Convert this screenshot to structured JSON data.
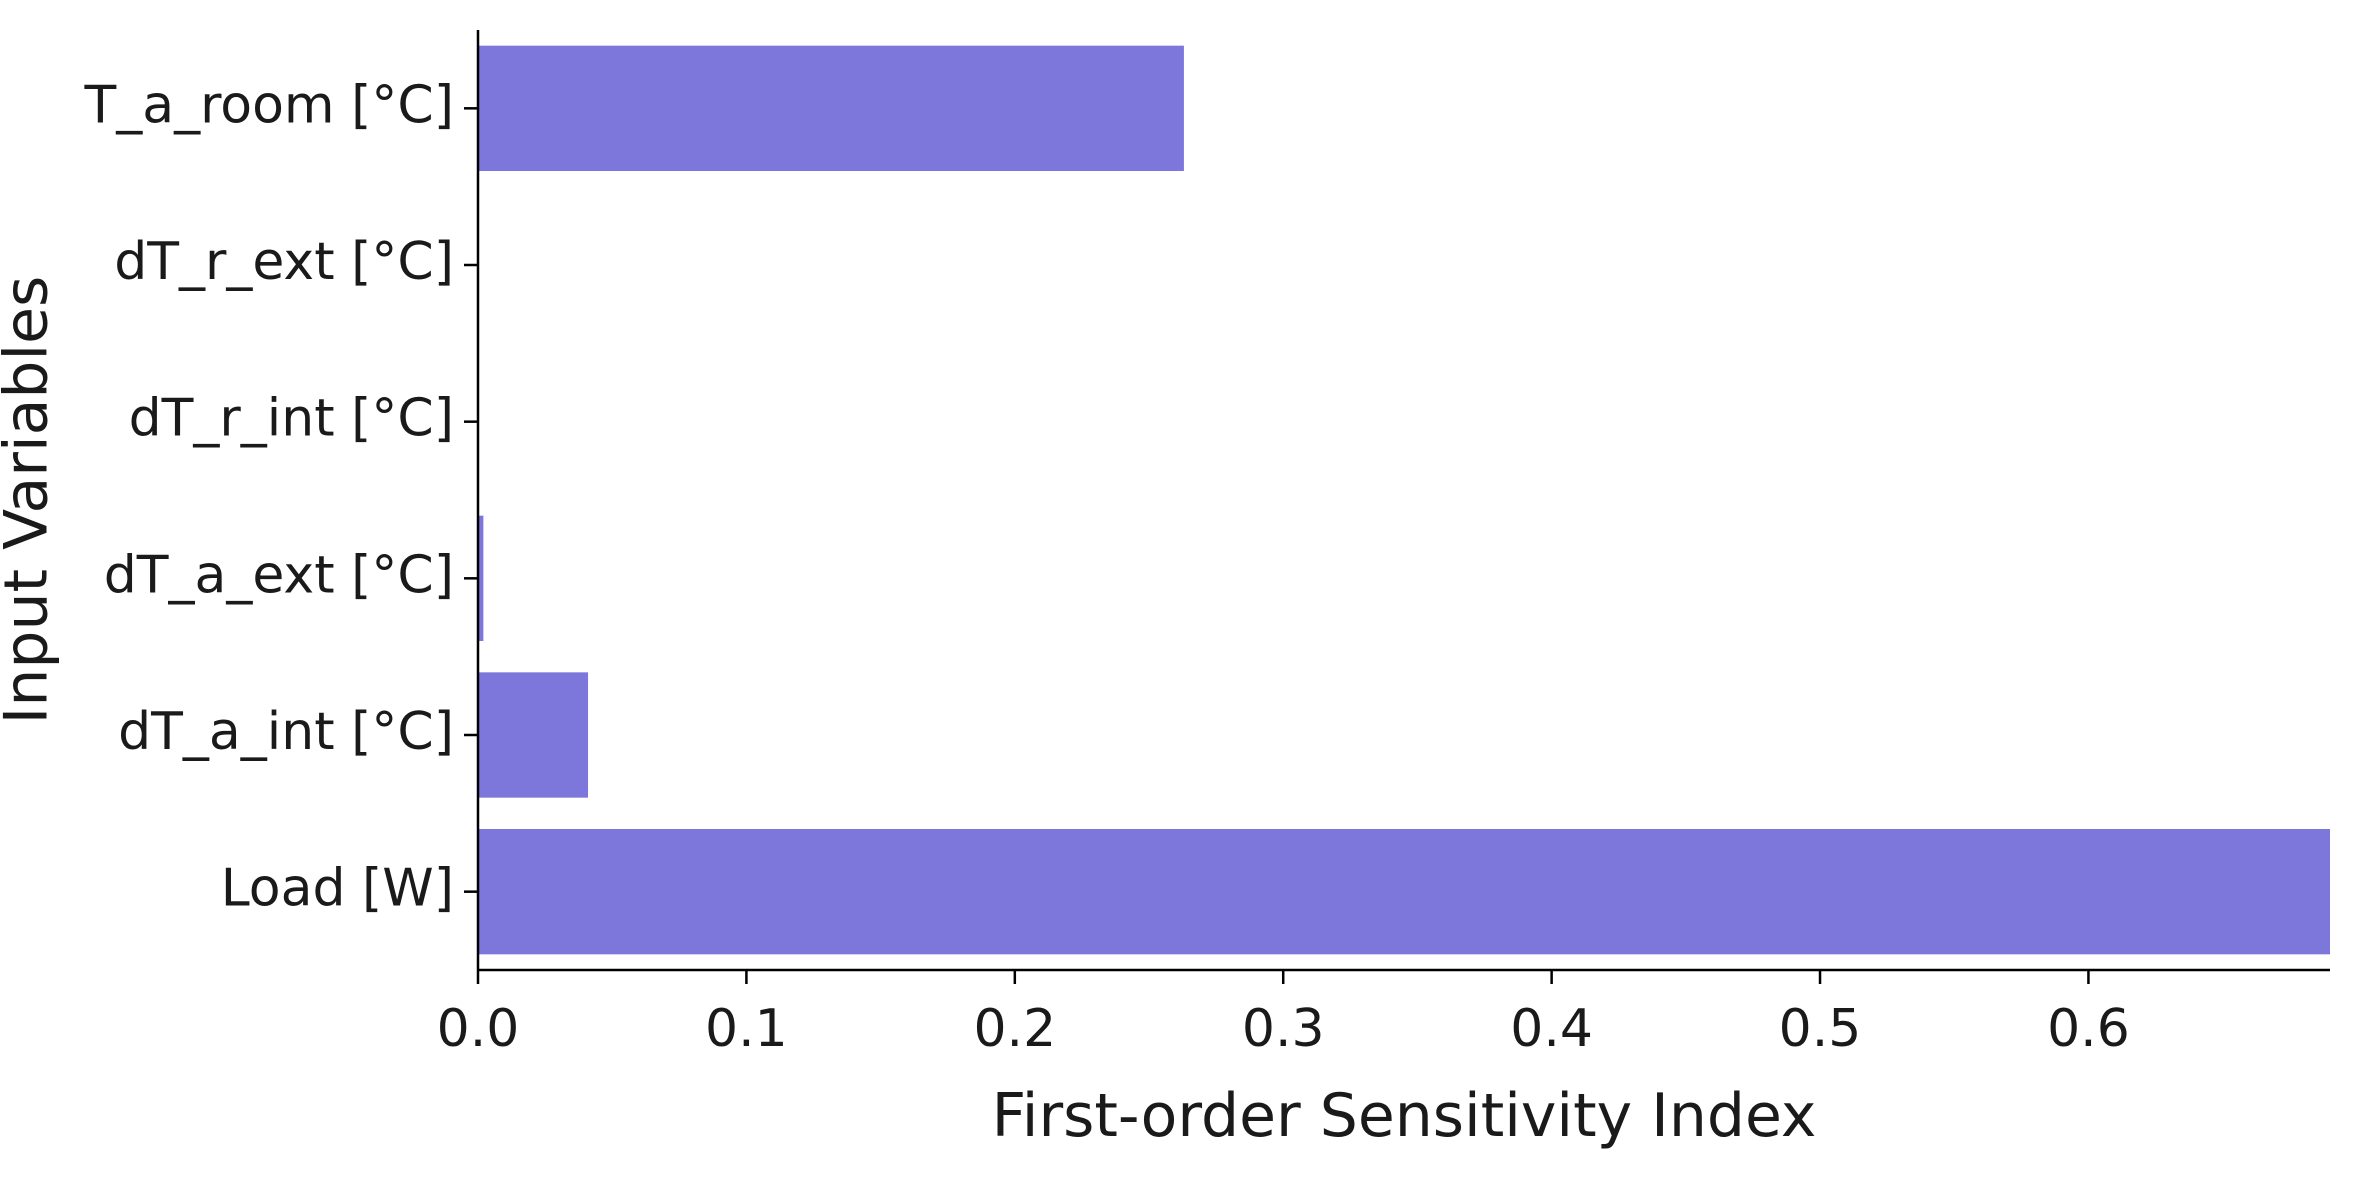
{
  "chart_data": {
    "type": "bar",
    "orientation": "horizontal",
    "categories": [
      "T_a_room [°C]",
      "dT_r_ext [°C]",
      "dT_r_int [°C]",
      "dT_a_ext [°C]",
      "dT_a_int [°C]",
      "Load [W]"
    ],
    "values": [
      0.263,
      0.0,
      0.0,
      0.002,
      0.041,
      0.69
    ],
    "xlabel": "First-order Sensitivity Index",
    "ylabel": "Input Variables",
    "xlim": [
      0,
      0.69
    ],
    "xticks": [
      "0.0",
      "0.1",
      "0.2",
      "0.3",
      "0.4",
      "0.5",
      "0.6"
    ],
    "bar_color": "#7d76db",
    "grid": false,
    "legend": "none"
  }
}
